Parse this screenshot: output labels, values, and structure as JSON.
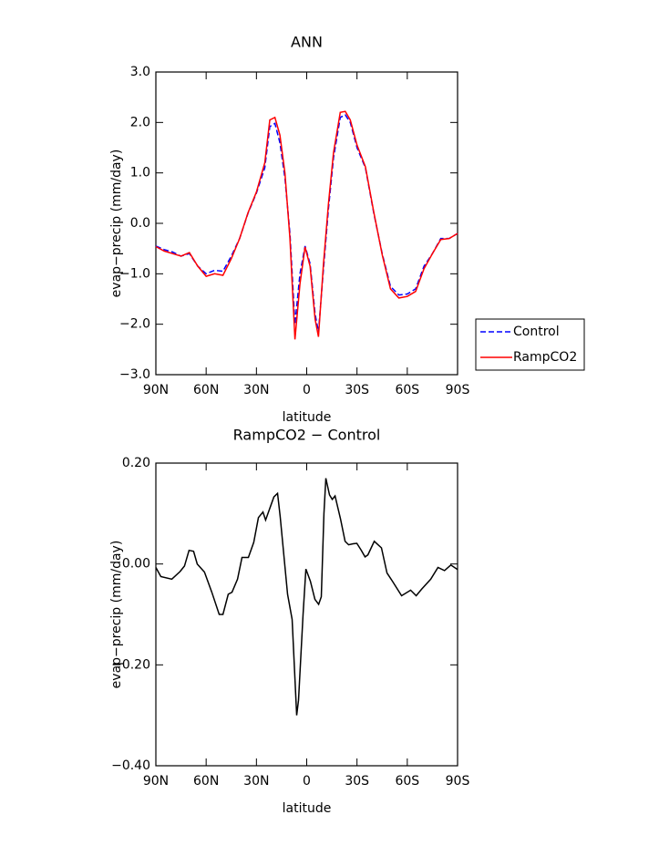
{
  "chart_data": [
    {
      "type": "line",
      "title": "ANN",
      "xlabel": "latitude",
      "ylabel": "evap−precip (mm/day)",
      "xlim": [
        90,
        -90
      ],
      "ylim": [
        -3,
        3
      ],
      "legend": "right",
      "xticks": [
        {
          "value": 90,
          "label": "90N"
        },
        {
          "value": 60,
          "label": "60N"
        },
        {
          "value": 30,
          "label": "30N"
        },
        0,
        {
          "value": -30,
          "label": "30S"
        },
        {
          "value": -60,
          "label": "60S"
        },
        {
          "value": -90,
          "label": "90S"
        }
      ],
      "yticks": [
        {
          "value": 3,
          "label": "3.0"
        },
        {
          "value": 2,
          "label": "2.0"
        },
        {
          "value": 1,
          "label": "1.0"
        },
        {
          "value": 0,
          "label": "0.0"
        },
        {
          "value": -1,
          "label": "−1.0"
        },
        {
          "value": -2,
          "label": "−2.0"
        },
        {
          "value": -3,
          "label": "−3.0"
        }
      ],
      "x": [
        90,
        85,
        80,
        75,
        70,
        65,
        60,
        55,
        50,
        45,
        40,
        35,
        30,
        25,
        22,
        19,
        16,
        13,
        10,
        7,
        4,
        1,
        -2,
        -5,
        -7,
        -10,
        -13,
        -16,
        -20,
        -23,
        -26,
        -30,
        -35,
        -40,
        -45,
        -50,
        -55,
        -60,
        -65,
        -70,
        -75,
        -80,
        -85,
        -90
      ],
      "series": [
        {
          "name": "Control",
          "color": "#0000ff",
          "line_style": "dashed",
          "values": [
            -0.45,
            -0.52,
            -0.57,
            -0.65,
            -0.6,
            -0.85,
            -1.0,
            -0.93,
            -0.95,
            -0.65,
            -0.3,
            0.2,
            0.6,
            1.1,
            1.92,
            1.98,
            1.6,
            0.9,
            -0.2,
            -2.0,
            -1.0,
            -0.45,
            -0.8,
            -1.8,
            -2.15,
            -0.9,
            0.3,
            1.3,
            2.1,
            2.15,
            2.0,
            1.5,
            1.1,
            0.2,
            -0.6,
            -1.25,
            -1.42,
            -1.4,
            -1.3,
            -0.85,
            -0.6,
            -0.3,
            -0.3,
            -0.2
          ]
        },
        {
          "name": "RampCO2",
          "color": "#ff0000",
          "line_style": "solid",
          "values": [
            -0.46,
            -0.55,
            -0.6,
            -0.65,
            -0.58,
            -0.85,
            -1.05,
            -1.0,
            -1.03,
            -0.7,
            -0.3,
            0.21,
            0.62,
            1.2,
            2.05,
            2.1,
            1.75,
            1.0,
            -0.3,
            -2.3,
            -1.2,
            -0.47,
            -0.85,
            -1.9,
            -2.25,
            -0.8,
            0.4,
            1.4,
            2.2,
            2.22,
            2.05,
            1.55,
            1.12,
            0.22,
            -0.62,
            -1.3,
            -1.48,
            -1.45,
            -1.35,
            -0.9,
            -0.6,
            -0.32,
            -0.3,
            -0.2
          ]
        }
      ]
    },
    {
      "type": "line",
      "title": "RampCO2 − Control",
      "xlabel": "latitude",
      "ylabel": "evap−precip (mm/day)",
      "xlim": [
        90,
        -90
      ],
      "ylim": [
        -0.4,
        0.2
      ],
      "xticks": [
        {
          "value": 90,
          "label": "90N"
        },
        {
          "value": 60,
          "label": "60N"
        },
        {
          "value": 30,
          "label": "30N"
        },
        0,
        {
          "value": -30,
          "label": "30S"
        },
        {
          "value": -60,
          "label": "60S"
        },
        {
          "value": -90,
          "label": "90S"
        }
      ],
      "yticks": [
        {
          "value": 0.2,
          "label": "0.20"
        },
        {
          "value": 0,
          "label": "0.00"
        },
        {
          "value": -0.2,
          "label": "−0.20"
        },
        {
          "value": -0.4,
          "label": "−0.40"
        }
      ],
      "x": [
        90,
        87,
        80.5,
        75.6,
        72.9,
        70.2,
        67.5,
        65.3,
        61,
        56.6,
        52.2,
        50,
        46.8,
        44.6,
        41.3,
        38.6,
        34.8,
        31.6,
        28.8,
        26.1,
        24.5,
        19.6,
        17.4,
        15.8,
        11.4,
        8.7,
        6,
        4.9,
        2.2,
        0.5,
        -2.2,
        -4.9,
        -7.1,
        -8.7,
        -10.3,
        -11.4,
        -13.6,
        -15.2,
        -16.9,
        -20.1,
        -22.9,
        -25,
        -27.7,
        -29.9,
        -32.6,
        -34.8,
        -36.5,
        -40.3,
        -44.6,
        -47.9,
        -51.1,
        -56.6,
        -62,
        -65.3,
        -68.6,
        -74,
        -78.3,
        -82.2,
        -86,
        -90
      ],
      "series": [
        {
          "color": "#000000",
          "line_style": "solid",
          "values": [
            -0.007,
            -0.025,
            -0.03,
            -0.015,
            -0.004,
            0.027,
            0.025,
            0,
            -0.016,
            -0.056,
            -0.1,
            -0.1,
            -0.06,
            -0.056,
            -0.03,
            0.013,
            0.013,
            0.043,
            0.092,
            0.103,
            0.087,
            0.133,
            0.14,
            0.094,
            -0.06,
            -0.11,
            -0.3,
            -0.27,
            -0.1,
            -0.01,
            -0.034,
            -0.07,
            -0.08,
            -0.065,
            0.1,
            0.17,
            0.137,
            0.128,
            0.135,
            0.09,
            0.045,
            0.038,
            0.04,
            0.041,
            0.027,
            0.014,
            0.018,
            0.045,
            0.032,
            -0.018,
            -0.034,
            -0.063,
            -0.052,
            -0.063,
            -0.05,
            -0.03,
            -0.007,
            -0.013,
            -0.002,
            -0.011
          ]
        }
      ]
    }
  ]
}
